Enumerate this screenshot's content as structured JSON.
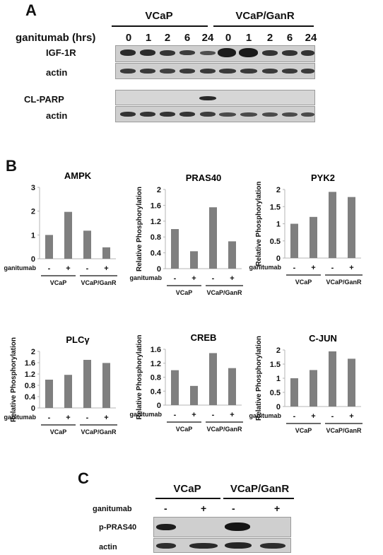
{
  "panel_a": {
    "letter": "A",
    "groups": [
      "VCaP",
      "VCaP/GanR"
    ],
    "treatment_label": "ganitumab (hrs)",
    "lanes": [
      "0",
      "1",
      "2",
      "6",
      "24",
      "0",
      "1",
      "2",
      "6",
      "24"
    ],
    "rows": [
      "IGF-1R",
      "actin",
      "CL-PARP",
      "actin"
    ]
  },
  "panel_b": {
    "letter": "B",
    "treatment_label": "ganitumab",
    "signs": [
      "-",
      "+",
      "-",
      "+"
    ],
    "groups": [
      "VCaP",
      "VCaP/GanR"
    ],
    "ylabel": "Relative Phosphorylation",
    "bar_color": "#7f7f7f"
  },
  "panel_c": {
    "letter": "C",
    "groups": [
      "VCaP",
      "VCaP/GanR"
    ],
    "treatment_label": "ganitumab",
    "signs": [
      "-",
      "+",
      "-",
      "+"
    ],
    "rows": [
      "p-PRAS40",
      "actin"
    ]
  },
  "chart_data": [
    {
      "type": "bar",
      "title": "AMPK",
      "categories": [
        "VCaP -",
        "VCaP +",
        "VCaP/GanR -",
        "VCaP/GanR +"
      ],
      "values": [
        1.0,
        1.97,
        1.18,
        0.48
      ],
      "ylim": [
        0,
        3
      ],
      "yticks": [
        "0",
        "1",
        "2",
        "3"
      ],
      "ylabel": ""
    },
    {
      "type": "bar",
      "title": "PRAS40",
      "categories": [
        "VCaP -",
        "VCaP +",
        "VCaP/GanR -",
        "VCaP/GanR +"
      ],
      "values": [
        1.0,
        0.44,
        1.55,
        0.69
      ],
      "ylim": [
        0,
        2
      ],
      "yticks": [
        "0",
        "0.4",
        "0.8",
        "1.2",
        "1.6",
        "2"
      ],
      "ylabel": "Relative Phosphorylation"
    },
    {
      "type": "bar",
      "title": "PYK2",
      "categories": [
        "VCaP -",
        "VCaP +",
        "VCaP/GanR -",
        "VCaP/GanR +"
      ],
      "values": [
        1.0,
        1.2,
        1.93,
        1.78
      ],
      "ylim": [
        0,
        2
      ],
      "yticks": [
        "0",
        "0.5",
        "1",
        "1.5",
        "2"
      ],
      "ylabel": "Relative Phosphorylation"
    },
    {
      "type": "bar",
      "title": "PLCγ",
      "categories": [
        "VCaP -",
        "VCaP +",
        "VCaP/GanR -",
        "VCaP/GanR +"
      ],
      "values": [
        1.0,
        1.17,
        1.7,
        1.59
      ],
      "ylim": [
        0,
        2
      ],
      "yticks": [
        "0",
        "0.4",
        "0.8",
        "1.2",
        "1.6",
        "2"
      ],
      "ylabel": "Relative Phosphorylation"
    },
    {
      "type": "bar",
      "title": "CREB",
      "categories": [
        "VCaP -",
        "VCaP +",
        "VCaP/GanR -",
        "VCaP/GanR +"
      ],
      "values": [
        1.0,
        0.55,
        1.49,
        1.06
      ],
      "ylim": [
        0,
        1.6
      ],
      "yticks": [
        "0",
        "0.4",
        "0.8",
        "1.2",
        "1.6"
      ],
      "ylabel": "Relative Phosphorylation"
    },
    {
      "type": "bar",
      "title": "C-JUN",
      "categories": [
        "VCaP -",
        "VCaP +",
        "VCaP/GanR -",
        "VCaP/GanR +"
      ],
      "values": [
        1.0,
        1.29,
        1.95,
        1.69
      ],
      "ylim": [
        0,
        2
      ],
      "yticks": [
        "0",
        "0.5",
        "1",
        "1.5",
        "2"
      ],
      "ylabel": "Relative Phosphorylation"
    }
  ]
}
